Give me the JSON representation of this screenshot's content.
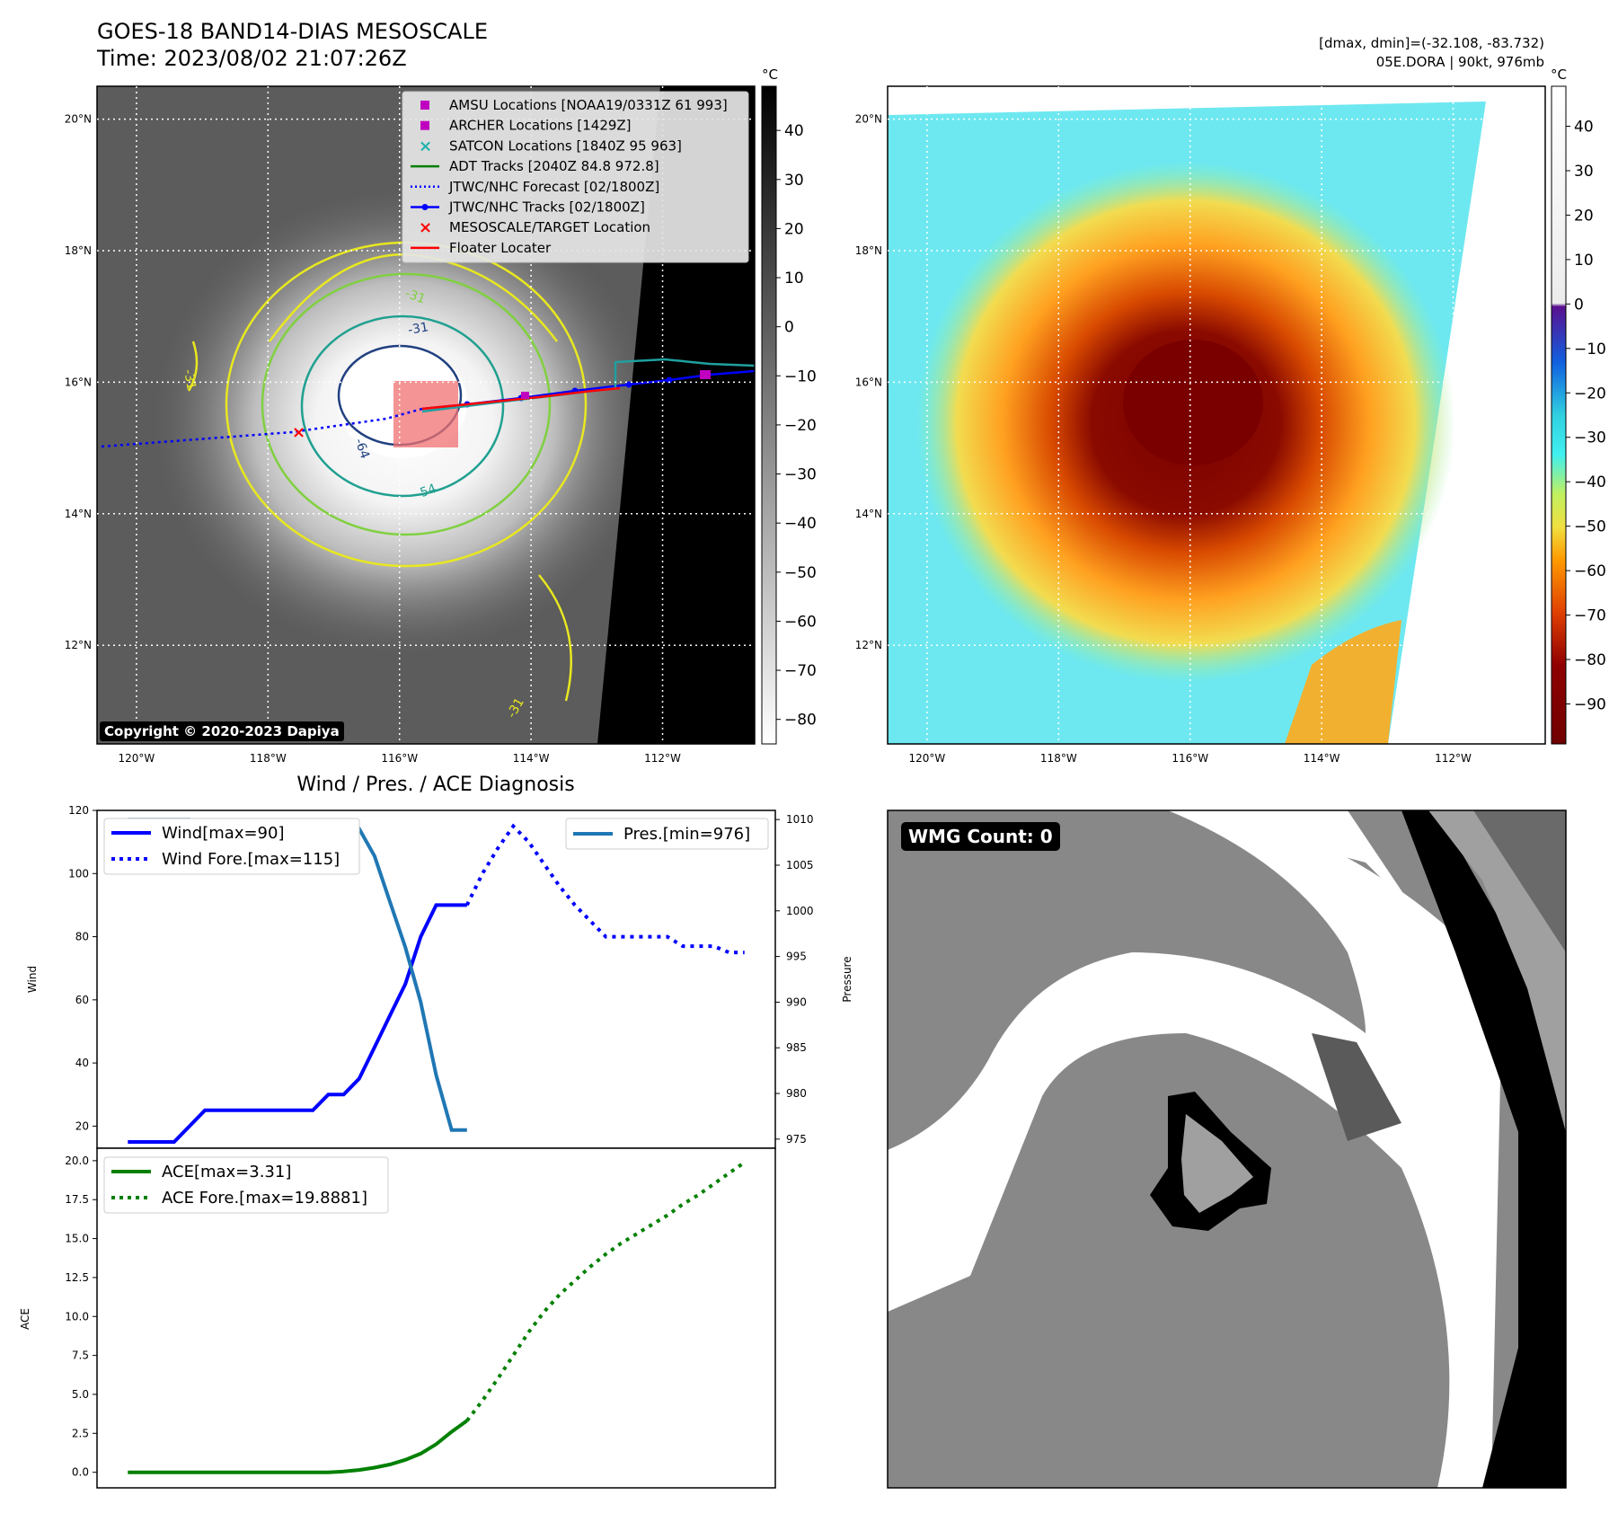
{
  "header": {
    "title_line1": "GOES-18 BAND14-DIAS MESOSCALE",
    "title_line2": "Time: 2023/08/02 21:07:26Z",
    "right_line1": "[dmax, dmin]=(-32.108, -83.732)",
    "right_line2": "05E.DORA | 90kt, 976mb"
  },
  "copyright": "Copyright © 2020-2023 Dapiya",
  "map_axes": {
    "lat_labels": [
      "20°N",
      "18°N",
      "16°N",
      "14°N",
      "12°N"
    ],
    "lon_labels": [
      "120°W",
      "118°W",
      "116°W",
      "114°W",
      "112°W"
    ],
    "lat_range": [
      10.5,
      20.5
    ],
    "lon_range": [
      -120.6,
      -110.6
    ]
  },
  "gray_colorbar": {
    "unit": "°C",
    "ticks": [
      "40",
      "30",
      "20",
      "10",
      "0",
      "−10",
      "−20",
      "−30",
      "−40",
      "−50",
      "−60",
      "−70",
      "−80"
    ],
    "range": [
      -85,
      49
    ]
  },
  "color_colorbar": {
    "unit": "°C",
    "ticks": [
      "40",
      "30",
      "20",
      "10",
      "0",
      "−10",
      "−20",
      "−30",
      "−40",
      "−50",
      "−60",
      "−70",
      "−80",
      "−90"
    ],
    "range": [
      -99,
      49
    ]
  },
  "map_legend": [
    {
      "label": "AMSU Locations [NOAA19/0331Z 61 993]",
      "symbol": "square",
      "color": "#c000c0"
    },
    {
      "label": "ARCHER Locations [1429Z]",
      "symbol": "square",
      "color": "#c000c0"
    },
    {
      "label": "SATCON Locations [1840Z 95 963]",
      "symbol": "x",
      "color": "#20b2aa"
    },
    {
      "label": "ADT Tracks [2040Z 84.8 972.8]",
      "symbol": "line",
      "color": "#008000"
    },
    {
      "label": "JTWC/NHC Forecast [02/1800Z]",
      "symbol": "dotted",
      "color": "#0000ff"
    },
    {
      "label": "JTWC/NHC Tracks [02/1800Z]",
      "symbol": "line-dot",
      "color": "#0000ff"
    },
    {
      "label": "MESOSCALE/TARGET Location",
      "symbol": "x",
      "color": "#ff0000"
    },
    {
      "label": "Floater Locater",
      "symbol": "line",
      "color": "#ff0000"
    }
  ],
  "contour_labels": [
    "-31",
    "-31",
    "-31",
    "-64",
    "-54",
    "-31"
  ],
  "diagnosis_title": "Wind / Pres. / ACE Diagnosis",
  "wmg_label": "WMG Count: 0",
  "chart_data": [
    {
      "type": "line",
      "title": "Wind / Pres. / ACE Diagnosis",
      "ylabel": "Wind",
      "ylabel_right": "Pressure",
      "ylim": [
        13,
        120
      ],
      "ylim_right": [
        974,
        1011
      ],
      "yticks": [
        20,
        40,
        60,
        80,
        100,
        120
      ],
      "yticks_right": [
        975,
        980,
        985,
        990,
        995,
        1000,
        1005,
        1010
      ],
      "x": [
        0,
        1,
        2,
        3,
        4,
        5,
        6,
        7,
        8,
        9,
        10,
        11,
        12,
        13,
        14,
        15,
        16,
        17,
        18,
        19,
        20,
        21,
        22,
        23,
        24,
        25,
        26,
        27,
        28,
        29,
        30,
        31,
        32,
        33,
        34,
        35,
        36,
        37,
        38,
        39,
        40
      ],
      "xlim": [
        -2,
        42
      ],
      "series": [
        {
          "name": "Wind[max=90]",
          "style": "solid",
          "color": "#0000ff",
          "axis": "left",
          "x": [
            0,
            1,
            2,
            3,
            4,
            5,
            6,
            7,
            8,
            9,
            10,
            11,
            12,
            13,
            14,
            15,
            16,
            17,
            18,
            19,
            20,
            21,
            22
          ],
          "values": [
            15,
            15,
            15,
            15,
            20,
            25,
            25,
            25,
            25,
            25,
            25,
            25,
            25,
            30,
            30,
            35,
            45,
            55,
            65,
            80,
            90,
            90,
            90
          ]
        },
        {
          "name": "Wind Fore.[max=115]",
          "style": "dotted",
          "color": "#0000ff",
          "axis": "left",
          "x": [
            22,
            23,
            24,
            25,
            26,
            27,
            28,
            29,
            30,
            31,
            32,
            33,
            34,
            35,
            36,
            37,
            38,
            39,
            40
          ],
          "values": [
            90,
            100,
            108,
            115,
            110,
            103,
            96,
            90,
            85,
            80,
            80,
            80,
            80,
            80,
            77,
            77,
            77,
            75,
            75
          ]
        },
        {
          "name": "Pres.[min=976]",
          "style": "solid",
          "color": "#1f77b4",
          "axis": "right",
          "x": [
            0,
            1,
            2,
            3,
            4,
            5,
            6,
            7,
            8,
            9,
            10,
            11,
            12,
            13,
            14,
            15,
            16,
            17,
            18,
            19,
            20,
            21,
            22
          ],
          "values": [
            1010,
            1010,
            1010,
            1010,
            1010,
            1009.5,
            1009.5,
            1009,
            1009,
            1009,
            1009,
            1009,
            1009,
            1009,
            1009,
            1009,
            1006,
            1001,
            996,
            990,
            982,
            976,
            976
          ]
        }
      ]
    },
    {
      "type": "line",
      "ylabel": "ACE",
      "ylim": [
        -1,
        20.8
      ],
      "yticks": [
        0.0,
        2.5,
        5.0,
        7.5,
        10.0,
        12.5,
        15.0,
        17.5,
        20.0
      ],
      "xlim": [
        -2,
        42
      ],
      "series": [
        {
          "name": "ACE[max=3.31]",
          "style": "solid",
          "color": "#008000",
          "x": [
            0,
            1,
            2,
            3,
            4,
            5,
            6,
            7,
            8,
            9,
            10,
            11,
            12,
            13,
            14,
            15,
            16,
            17,
            18,
            19,
            20,
            21,
            22
          ],
          "values": [
            0,
            0,
            0,
            0,
            0,
            0,
            0,
            0,
            0,
            0,
            0,
            0,
            0,
            0,
            0.05,
            0.15,
            0.3,
            0.5,
            0.8,
            1.2,
            1.8,
            2.6,
            3.31
          ]
        },
        {
          "name": "ACE Fore.[max=19.8881]",
          "style": "dotted",
          "color": "#008000",
          "x": [
            22,
            23,
            24,
            25,
            26,
            27,
            28,
            29,
            30,
            31,
            32,
            33,
            34,
            35,
            36,
            37,
            38,
            39,
            40
          ],
          "values": [
            3.31,
            4.6,
            6.0,
            7.5,
            9.0,
            10.3,
            11.4,
            12.3,
            13.2,
            14.0,
            14.7,
            15.3,
            15.9,
            16.5,
            17.2,
            17.8,
            18.5,
            19.2,
            19.89
          ]
        }
      ]
    }
  ]
}
